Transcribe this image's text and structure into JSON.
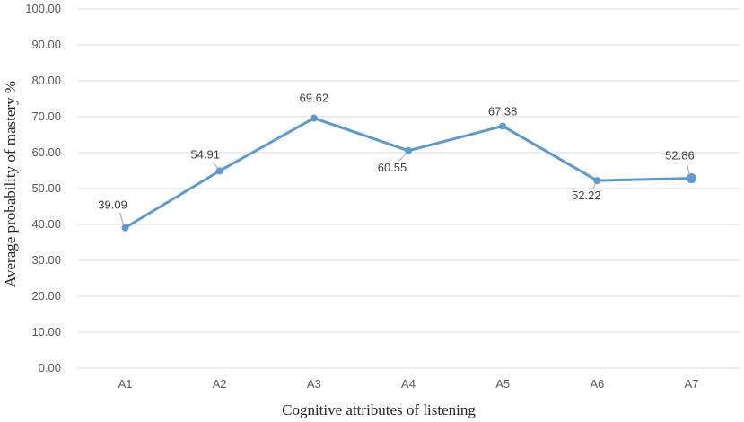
{
  "chart_data": {
    "type": "line",
    "categories": [
      "A1",
      "A2",
      "A3",
      "A4",
      "A5",
      "A6",
      "A7"
    ],
    "series": [
      {
        "values": [
          39.09,
          54.91,
          69.62,
          60.55,
          67.38,
          52.22,
          52.86
        ],
        "color": "#5b9bd5"
      }
    ],
    "xlabel": "Cognitive attributes of listening",
    "ylabel": "Average probability of mastery %",
    "ylim": [
      0,
      100
    ],
    "yticks": [
      "0.00",
      "10.00",
      "20.00",
      "30.00",
      "40.00",
      "50.00",
      "60.00",
      "70.00",
      "80.00",
      "90.00",
      "100.00"
    ],
    "data_labels": [
      "39.09",
      "54.91",
      "69.62",
      "60.55",
      "67.38",
      "52.22",
      "52.86"
    ],
    "grid": true,
    "legend": "none"
  }
}
